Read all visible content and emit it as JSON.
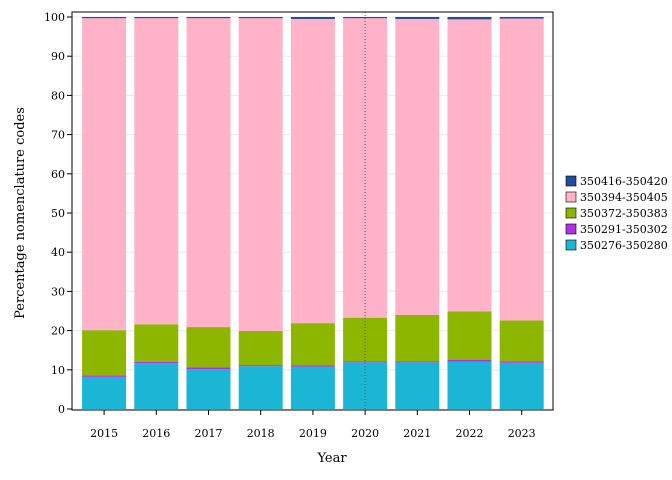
{
  "chart_data": {
    "type": "bar",
    "stacked": true,
    "xlabel": "Year",
    "ylabel": "Percentage nomenclature codes",
    "ylim": [
      0,
      100
    ],
    "yticks": [
      0,
      10,
      20,
      30,
      40,
      50,
      60,
      70,
      80,
      90,
      100
    ],
    "categories": [
      "2015",
      "2016",
      "2017",
      "2018",
      "2019",
      "2020",
      "2021",
      "2022",
      "2023"
    ],
    "reference_line": {
      "x": "2020",
      "style": "dotted"
    },
    "legend_position": "right",
    "series": [
      {
        "name": "350276-350280",
        "color": "#1bb6d6",
        "values": [
          8.2,
          11.7,
          10.2,
          10.9,
          10.8,
          11.9,
          11.9,
          12.1,
          11.8
        ]
      },
      {
        "name": "350291-350302",
        "color": "#b42ee6",
        "values": [
          0.4,
          0.3,
          0.4,
          0.3,
          0.3,
          0.3,
          0.3,
          0.4,
          0.4
        ]
      },
      {
        "name": "350372-350383",
        "color": "#8db600",
        "values": [
          11.5,
          9.6,
          10.3,
          8.7,
          10.8,
          11.1,
          11.8,
          12.4,
          10.4
        ]
      },
      {
        "name": "350394-350405",
        "color": "#ffb2c8",
        "values": [
          79.6,
          78.1,
          78.8,
          79.8,
          77.6,
          76.4,
          75.5,
          74.5,
          77.0
        ]
      },
      {
        "name": "350416-350420",
        "color": "#1f4e9e",
        "values": [
          0.3,
          0.3,
          0.3,
          0.3,
          0.5,
          0.3,
          0.5,
          0.6,
          0.4
        ]
      }
    ]
  }
}
